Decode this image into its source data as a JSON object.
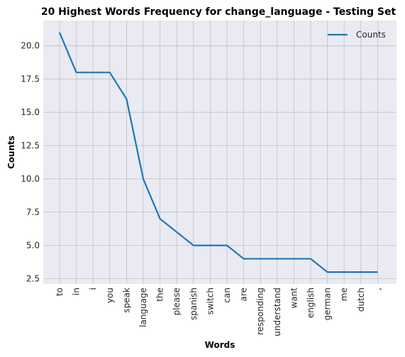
{
  "chart_data": {
    "type": "line",
    "title": "20 Highest Words Frequency for change_language - Testing Set",
    "xlabel": "Words",
    "ylabel": "Counts",
    "categories": [
      "to",
      "in",
      "i",
      "you",
      "speak",
      "language",
      "the",
      "please",
      "spanish",
      "switch",
      "can",
      "are",
      "responding",
      "understand",
      "want",
      "english",
      "german",
      "me",
      "dutch",
      ","
    ],
    "series": [
      {
        "name": "Counts",
        "values": [
          21,
          18,
          18,
          18,
          16,
          10,
          7,
          6,
          5,
          5,
          5,
          4,
          4,
          4,
          4,
          4,
          3,
          3,
          3,
          3
        ]
      }
    ],
    "ylim": [
      2.1,
      21.9
    ],
    "yticks": [
      "2.5",
      "5.0",
      "7.5",
      "10.0",
      "12.5",
      "15.0",
      "17.5",
      "20.0"
    ],
    "grid": true,
    "legend": "top-right",
    "colors": {
      "line": "#1f77b4",
      "plot_bg": "#eaeaf2",
      "grid": "#c0c0c8"
    }
  }
}
